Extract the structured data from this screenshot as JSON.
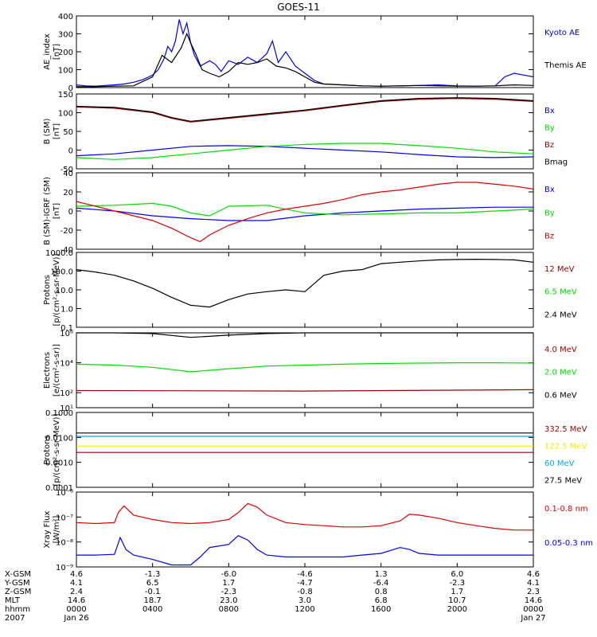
{
  "title": "GOES-11",
  "colors": {
    "black": "#000000",
    "blue": "#0000ee",
    "green": "#00dd00",
    "red": "#dd0000",
    "darkred": "#990000",
    "yellow": "#eeee00",
    "cyan": "#00aaee"
  },
  "chart_data": [
    {
      "id": "ae",
      "type": "line",
      "ylabel": [
        "AE_index",
        "[nT]"
      ],
      "scale": "linear",
      "ylim": [
        0,
        400
      ],
      "yticks": [
        0,
        100,
        200,
        300,
        400
      ],
      "ytick_labels": [
        "0",
        "100",
        "200",
        "300",
        "400"
      ],
      "series": [
        {
          "name": "Kyoto AE",
          "color": "blue",
          "x": [
            0,
            0.5,
            1,
            1.5,
            2,
            2.5,
            3,
            3.5,
            4,
            4.3,
            4.6,
            4.8,
            5,
            5.2,
            5.4,
            5.6,
            5.8,
            6,
            6.2,
            6.5,
            7,
            7.3,
            7.6,
            8,
            8.5,
            9,
            9.5,
            10,
            10.3,
            10.6,
            11,
            11.5,
            12,
            12.5,
            13,
            14,
            15,
            16,
            17,
            18,
            19,
            20,
            21,
            22,
            22.5,
            23,
            23.5,
            24
          ],
          "y": [
            15,
            10,
            8,
            12,
            15,
            20,
            30,
            45,
            70,
            100,
            160,
            230,
            200,
            260,
            380,
            300,
            360,
            250,
            180,
            120,
            150,
            130,
            90,
            150,
            130,
            170,
            140,
            190,
            260,
            140,
            200,
            120,
            80,
            40,
            20,
            15,
            10,
            8,
            10,
            12,
            15,
            10,
            8,
            10,
            60,
            80,
            70,
            60
          ]
        },
        {
          "name": "Themis AE",
          "color": "black",
          "x": [
            0,
            1,
            2,
            3,
            4,
            4.5,
            5,
            5.5,
            5.8,
            6,
            6.3,
            6.6,
            7,
            7.5,
            8,
            8.5,
            9,
            9.5,
            10,
            10.5,
            11,
            11.5,
            12,
            12.5,
            13,
            14,
            15,
            16,
            17,
            18,
            19,
            20,
            21,
            22,
            23,
            24
          ],
          "y": [
            5,
            5,
            8,
            10,
            60,
            180,
            140,
            220,
            300,
            250,
            180,
            100,
            80,
            60,
            90,
            140,
            130,
            140,
            160,
            120,
            110,
            90,
            60,
            30,
            20,
            15,
            10,
            8,
            10,
            12,
            10,
            8,
            8,
            10,
            15,
            12
          ]
        }
      ]
    },
    {
      "id": "b",
      "type": "line",
      "ylabel": [
        "B (SM)",
        "[nT]"
      ],
      "scale": "linear",
      "ylim": [
        -50,
        150
      ],
      "yticks": [
        -50,
        0,
        50,
        100,
        150
      ],
      "ytick_labels": [
        "-50",
        "0",
        "50",
        "100",
        "150"
      ],
      "series": [
        {
          "name": "Bx",
          "color": "blue",
          "x": [
            0,
            2,
            4,
            6,
            8,
            10,
            12,
            14,
            16,
            18,
            20,
            22,
            24
          ],
          "y": [
            -15,
            -10,
            0,
            10,
            12,
            10,
            5,
            0,
            -5,
            -12,
            -18,
            -20,
            -18
          ]
        },
        {
          "name": "By",
          "color": "green",
          "x": [
            0,
            2,
            4,
            6,
            8,
            10,
            12,
            14,
            16,
            18,
            20,
            22,
            24
          ],
          "y": [
            -20,
            -25,
            -20,
            -10,
            0,
            10,
            15,
            18,
            18,
            12,
            5,
            -5,
            -10
          ]
        },
        {
          "name": "Bz",
          "color": "darkred",
          "x": [
            0,
            2,
            4,
            5,
            6,
            7,
            8,
            10,
            12,
            14,
            16,
            18,
            20,
            22,
            24
          ],
          "y": [
            115,
            112,
            100,
            85,
            75,
            80,
            85,
            95,
            105,
            118,
            130,
            136,
            138,
            136,
            130
          ]
        },
        {
          "name": "Bmag",
          "color": "black",
          "x": [
            0,
            2,
            4,
            5,
            6,
            7,
            8,
            10,
            12,
            14,
            16,
            18,
            20,
            22,
            24
          ],
          "y": [
            117,
            114,
            102,
            87,
            77,
            82,
            87,
            97,
            107,
            120,
            132,
            138,
            140,
            138,
            132
          ]
        }
      ]
    },
    {
      "id": "db",
      "type": "line",
      "ylabel": [
        "B (SM)-IGRF (SM)",
        "[nT]"
      ],
      "scale": "linear",
      "ylim": [
        -40,
        40
      ],
      "yticks": [
        -40,
        -20,
        0,
        20,
        40
      ],
      "ytick_labels": [
        "-40",
        "-20",
        "0",
        "20",
        "40"
      ],
      "series": [
        {
          "name": "Bx",
          "color": "blue",
          "x": [
            0,
            2,
            4,
            6,
            8,
            10,
            12,
            14,
            16,
            18,
            20,
            22,
            24
          ],
          "y": [
            3,
            0,
            -5,
            -8,
            -10,
            -10,
            -5,
            -2,
            0,
            2,
            3,
            4,
            4
          ]
        },
        {
          "name": "By",
          "color": "green",
          "x": [
            0,
            2,
            4,
            5,
            6,
            7,
            8,
            10,
            12,
            14,
            16,
            18,
            20,
            22,
            24
          ],
          "y": [
            5,
            6,
            8,
            5,
            -2,
            -5,
            5,
            6,
            -2,
            -4,
            -3,
            -2,
            -2,
            0,
            2
          ]
        },
        {
          "name": "Bz",
          "color": "red",
          "x": [
            0,
            1,
            2,
            3,
            4,
            5,
            6,
            6.5,
            7,
            8,
            9,
            10,
            11,
            12,
            13,
            14,
            15,
            16,
            17,
            18,
            19,
            20,
            21,
            22,
            23,
            24
          ],
          "y": [
            10,
            5,
            0,
            -5,
            -10,
            -18,
            -28,
            -32,
            -25,
            -15,
            -8,
            -2,
            2,
            5,
            8,
            12,
            17,
            20,
            22,
            25,
            28,
            30,
            30,
            28,
            26,
            23
          ]
        }
      ]
    },
    {
      "id": "protons_low",
      "type": "line",
      "ylabel": [
        "Protons",
        "[p/(cm²-s-sr-MeV)]"
      ],
      "scale": "log",
      "ylim": [
        0.1,
        1000
      ],
      "yticks": [
        0.1,
        1,
        10,
        100,
        1000
      ],
      "ytick_labels": [
        "0.1",
        "1.0",
        "10.0",
        "100.0",
        "1000.0"
      ],
      "series": [
        {
          "name": "12 MeV",
          "color": "darkred",
          "x": [],
          "y": []
        },
        {
          "name": "6.5 MeV",
          "color": "green",
          "x": [],
          "y": []
        },
        {
          "name": "2.4 MeV",
          "color": "black",
          "x": [
            0,
            1,
            2,
            3,
            4,
            5,
            6,
            7,
            8,
            9,
            10,
            11,
            12,
            13,
            14,
            15,
            16,
            17,
            18,
            19,
            20,
            21,
            22,
            23,
            24
          ],
          "y": [
            120,
            90,
            60,
            30,
            12,
            4,
            1.5,
            1.2,
            3,
            6,
            8,
            10,
            8,
            60,
            100,
            120,
            250,
            300,
            350,
            400,
            420,
            430,
            420,
            400,
            300
          ]
        }
      ]
    },
    {
      "id": "electrons",
      "type": "line",
      "ylabel": [
        "Electrons",
        "[e/(cm²-s-sr)]"
      ],
      "scale": "log",
      "ylim": [
        10,
        1000000
      ],
      "yticks": [
        10,
        100,
        10000,
        1000000
      ],
      "ytick_labels": [
        "10¹",
        "10²",
        "10⁴",
        "10⁶"
      ],
      "series": [
        {
          "name": "4.0 MeV",
          "color": "darkred",
          "x": [
            0,
            12,
            24
          ],
          "y": [
            140,
            130,
            160
          ]
        },
        {
          "name": "2.0 MeV",
          "color": "green",
          "x": [
            0,
            2,
            4,
            6,
            8,
            10,
            12,
            14,
            16,
            18,
            20,
            22,
            24
          ],
          "y": [
            8000,
            7000,
            5000,
            2500,
            4000,
            6000,
            7000,
            8000,
            9000,
            9500,
            10000,
            10000,
            9500
          ]
        },
        {
          "name": "0.6 MeV",
          "color": "black",
          "x": [
            0,
            2,
            4,
            6,
            8,
            10,
            12,
            14,
            16,
            18,
            20,
            22,
            24
          ],
          "y": [
            1000000,
            1000000,
            900000,
            500000,
            700000,
            900000,
            1000000,
            1000000,
            1000000,
            1000000,
            1000000,
            1000000,
            1000000
          ]
        }
      ]
    },
    {
      "id": "protons_high",
      "type": "line",
      "ylabel": [
        "Protons",
        "[p/(cm²-s-sr-MeV)]"
      ],
      "scale": "log",
      "ylim": [
        0.0001,
        0.1
      ],
      "yticks": [
        0.0001,
        0.001,
        0.01,
        0.1
      ],
      "ytick_labels": [
        "0.0001",
        "0.0010",
        "0.0100",
        "0.1000"
      ],
      "series": [
        {
          "name": "332.5 MeV",
          "color": "darkred",
          "x": [
            0,
            24
          ],
          "y": [
            0.0025,
            0.0025
          ]
        },
        {
          "name": "122.5 MeV",
          "color": "yellow",
          "x": [
            0,
            24
          ],
          "y": [
            0.0045,
            0.0045
          ]
        },
        {
          "name": "60 MeV",
          "color": "cyan",
          "x": [
            0,
            24
          ],
          "y": [
            0.011,
            0.011
          ]
        },
        {
          "name": "27.5 MeV",
          "color": "black",
          "x": [
            0,
            24
          ],
          "y": [
            0.015,
            0.015
          ]
        }
      ]
    },
    {
      "id": "xray",
      "type": "line",
      "ylabel": [
        "Xray Flux",
        "[W/m²]"
      ],
      "scale": "log",
      "ylim": [
        1e-09,
        1e-06
      ],
      "yticks": [
        1e-09,
        1e-08,
        1e-07,
        1e-06
      ],
      "ytick_labels": [
        "10⁻⁹",
        "10⁻⁸",
        "10⁻⁷",
        "10⁻⁶"
      ],
      "series": [
        {
          "name": "0.1-0.8 nm",
          "color": "red",
          "x": [
            0,
            1,
            2,
            2.2,
            2.5,
            3,
            4,
            5,
            6,
            7,
            8,
            8.5,
            9,
            9.5,
            10,
            11,
            12,
            13,
            14,
            15,
            16,
            17,
            17.5,
            18,
            19,
            20,
            21,
            22,
            23,
            24
          ],
          "y": [
            6e-08,
            5.5e-08,
            6e-08,
            1.5e-07,
            2.8e-07,
            1.2e-07,
            8e-08,
            6e-08,
            5.5e-08,
            6e-08,
            8e-08,
            1.5e-07,
            3.5e-07,
            2.5e-07,
            1.2e-07,
            6e-08,
            5e-08,
            4.5e-08,
            4e-08,
            4e-08,
            4.5e-08,
            7e-08,
            1.3e-07,
            1.2e-07,
            9e-08,
            6e-08,
            4.5e-08,
            3.5e-08,
            3e-08,
            3e-08
          ]
        },
        {
          "name": "0.05-0.3 nm",
          "color": "blue",
          "x": [
            0,
            1,
            2,
            2.3,
            2.6,
            3,
            4,
            5,
            6,
            6.5,
            7,
            8,
            8.5,
            9,
            9.5,
            10,
            11,
            12,
            13,
            14,
            15,
            16,
            17,
            17.5,
            18,
            19,
            20,
            21,
            22,
            23,
            24
          ],
          "y": [
            3e-09,
            3e-09,
            3.2e-09,
            1.5e-08,
            5e-09,
            3e-09,
            2e-09,
            1.2e-09,
            1.2e-09,
            2.5e-09,
            6e-09,
            8e-09,
            1.8e-08,
            1.2e-08,
            5e-09,
            3e-09,
            2.5e-09,
            2.5e-09,
            2.5e-09,
            2.5e-09,
            3e-09,
            3.5e-09,
            6e-09,
            5e-09,
            3.5e-09,
            3e-09,
            3e-09,
            3e-09,
            3e-09,
            3e-09,
            3e-09
          ]
        }
      ]
    }
  ],
  "x_axis": {
    "ticks": [
      0,
      4,
      8,
      12,
      16,
      20,
      24
    ],
    "rows": [
      {
        "label": "X-GSM",
        "values": [
          "4.6",
          "-1.3",
          "-6.0",
          "-4.6",
          "1.3",
          "6.0",
          "4.6"
        ]
      },
      {
        "label": "Y-GSM",
        "values": [
          "4.1",
          "6.5",
          "1.7",
          "-4.7",
          "-6.4",
          "-2.3",
          "4.1"
        ]
      },
      {
        "label": "Z-GSM",
        "values": [
          "2.4",
          "-0.1",
          "-2.3",
          "-0.8",
          "0.8",
          "1.7",
          "2.3"
        ]
      },
      {
        "label": "MLT",
        "values": [
          "14.6",
          "18.7",
          "23.0",
          "3.0",
          "6.8",
          "10.7",
          "14.6"
        ]
      },
      {
        "label": "hhmm",
        "values": [
          "0000",
          "0400",
          "0800",
          "1200",
          "1600",
          "2000",
          "0000"
        ]
      },
      {
        "label": "2007",
        "values": [
          "Jan 26",
          "",
          "",
          "",
          "",
          "",
          "Jan 27"
        ]
      }
    ]
  }
}
